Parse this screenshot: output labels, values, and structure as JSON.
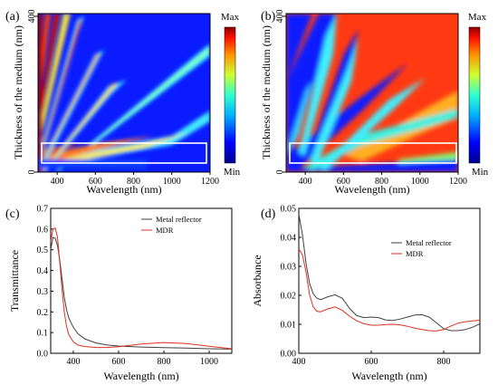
{
  "chart_data": [
    {
      "panel": "(a)",
      "type": "heatmap",
      "xlabel": "Wavelength (nm)",
      "ylabel": "Thickness of the medium (nm)",
      "xticks": [
        "400",
        "600",
        "800",
        "1000",
        "1200"
      ],
      "yticks": [
        "0",
        "400"
      ],
      "xlim": [
        300,
        1200
      ],
      "ylim": [
        0,
        400
      ],
      "colorbar": {
        "max_label": "Max",
        "min_label": "Min"
      },
      "highlight_box": {
        "x": [
          300,
          1180
        ],
        "y": [
          30,
          95
        ]
      }
    },
    {
      "panel": "(b)",
      "type": "heatmap",
      "xlabel": "Wavelength (nm)",
      "ylabel": "Thickness of the medium (nm)",
      "xticks": [
        "400",
        "600",
        "800",
        "1000",
        "1200"
      ],
      "yticks": [
        "0",
        "400"
      ],
      "xlim": [
        300,
        1200
      ],
      "ylim": [
        0,
        400
      ],
      "colorbar": {
        "max_label": "Max",
        "min_label": "Min"
      },
      "highlight_box": {
        "x": [
          300,
          1180
        ],
        "y": [
          30,
          95
        ]
      }
    },
    {
      "panel": "(c)",
      "type": "line",
      "xlabel": "Wavelength (nm)",
      "ylabel": "Transmittance",
      "xlim": [
        300,
        1100
      ],
      "ylim": [
        0.0,
        0.7
      ],
      "xticks": [
        400,
        600,
        800,
        1000
      ],
      "yticks": [
        0.0,
        0.1,
        0.2,
        0.3,
        0.4,
        0.5,
        0.6,
        0.7
      ],
      "yticklabels": [
        "0.0",
        "0.1",
        "0.2",
        "0.3",
        "0.4",
        "0.5",
        "0.6",
        "0.7"
      ],
      "legend_position": "top-right",
      "series": [
        {
          "name": "Metal reflector",
          "color": "#404040",
          "x": [
            300,
            310,
            320,
            330,
            340,
            350,
            360,
            370,
            380,
            400,
            420,
            450,
            500,
            550,
            600,
            700,
            800,
            900,
            1000,
            1100
          ],
          "y": [
            0.5,
            0.56,
            0.555,
            0.52,
            0.45,
            0.36,
            0.27,
            0.21,
            0.17,
            0.125,
            0.095,
            0.07,
            0.05,
            0.04,
            0.035,
            0.03,
            0.027,
            0.025,
            0.022,
            0.02
          ]
        },
        {
          "name": "MDR",
          "color": "#e03020",
          "x": [
            300,
            310,
            320,
            330,
            340,
            350,
            360,
            370,
            380,
            400,
            420,
            450,
            500,
            550,
            600,
            700,
            800,
            900,
            1000,
            1100
          ],
          "y": [
            0.54,
            0.6,
            0.605,
            0.56,
            0.44,
            0.31,
            0.2,
            0.13,
            0.09,
            0.055,
            0.04,
            0.033,
            0.028,
            0.028,
            0.032,
            0.045,
            0.052,
            0.047,
            0.034,
            0.022
          ]
        }
      ]
    },
    {
      "panel": "(d)",
      "type": "line",
      "xlabel": "Wavelength (nm)",
      "ylabel": "Absorbance",
      "xlim": [
        400,
        900
      ],
      "ylim": [
        0.0,
        0.05
      ],
      "xticks": [
        400,
        600,
        800
      ],
      "yticks": [
        0.0,
        0.01,
        0.02,
        0.03,
        0.04,
        0.05
      ],
      "yticklabels": [
        "0.00",
        "0.01",
        "0.02",
        "0.03",
        "0.04",
        "0.05"
      ],
      "legend_position": "top-right",
      "series": [
        {
          "name": "Metal reflector",
          "color": "#404040",
          "x": [
            400,
            410,
            420,
            430,
            440,
            450,
            460,
            480,
            500,
            520,
            540,
            560,
            580,
            600,
            620,
            640,
            660,
            680,
            700,
            720,
            740,
            760,
            780,
            800,
            820,
            840,
            860,
            880,
            900
          ],
          "y": [
            0.048,
            0.041,
            0.031,
            0.024,
            0.0205,
            0.019,
            0.0185,
            0.0195,
            0.0202,
            0.019,
            0.0155,
            0.013,
            0.0123,
            0.0125,
            0.0123,
            0.0115,
            0.0113,
            0.0118,
            0.0125,
            0.0132,
            0.0133,
            0.0125,
            0.0105,
            0.0085,
            0.0078,
            0.0078,
            0.0082,
            0.009,
            0.0102
          ]
        },
        {
          "name": "MDR",
          "color": "#e03020",
          "x": [
            400,
            410,
            420,
            430,
            440,
            450,
            460,
            480,
            500,
            520,
            540,
            560,
            580,
            600,
            620,
            640,
            660,
            680,
            700,
            720,
            740,
            760,
            780,
            800,
            820,
            840,
            860,
            880,
            900
          ],
          "y": [
            0.036,
            0.034,
            0.028,
            0.02,
            0.016,
            0.0145,
            0.0143,
            0.0153,
            0.016,
            0.0148,
            0.0128,
            0.0112,
            0.0102,
            0.0097,
            0.0097,
            0.0099,
            0.01,
            0.0098,
            0.0093,
            0.0087,
            0.0082,
            0.0078,
            0.0077,
            0.0082,
            0.0094,
            0.0104,
            0.0109,
            0.0112,
            0.0114
          ]
        }
      ]
    }
  ]
}
